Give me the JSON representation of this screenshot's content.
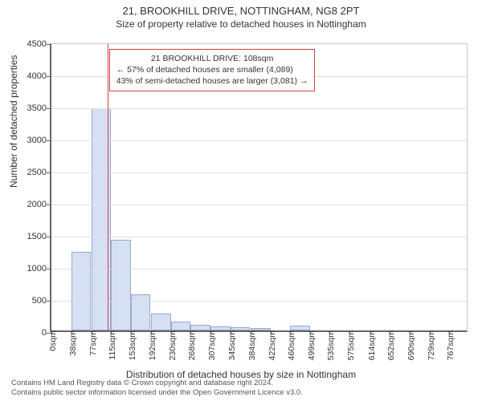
{
  "title": "21, BROOKHILL DRIVE, NOTTINGHAM, NG8 2PT",
  "subtitle": "Size of property relative to detached houses in Nottingham",
  "chart": {
    "type": "histogram",
    "xlabel": "Distribution of detached houses by size in Nottingham",
    "ylabel": "Number of detached properties",
    "background_color": "#ffffff",
    "grid_color": "#e0e0e0",
    "axis_color": "#666666",
    "bar_fill": "#d6e0f5",
    "bar_stroke": "#9aa7c7",
    "marker_color": "#d04040",
    "marker_x": 108,
    "title_fontsize": 13,
    "subtitle_fontsize": 12,
    "label_fontsize": 12,
    "tick_fontsize": 11,
    "ylim": [
      0,
      4500
    ],
    "ytick_step": 500,
    "yticks": [
      0,
      500,
      1000,
      1500,
      2000,
      2500,
      3000,
      3500,
      4000,
      4500
    ],
    "xlim": [
      0,
      805
    ],
    "xticks": [
      {
        "pos": 0,
        "label": "0sqm"
      },
      {
        "pos": 38,
        "label": "38sqm"
      },
      {
        "pos": 77,
        "label": "77sqm"
      },
      {
        "pos": 115,
        "label": "115sqm"
      },
      {
        "pos": 153,
        "label": "153sqm"
      },
      {
        "pos": 192,
        "label": "192sqm"
      },
      {
        "pos": 230,
        "label": "230sqm"
      },
      {
        "pos": 268,
        "label": "268sqm"
      },
      {
        "pos": 307,
        "label": "307sqm"
      },
      {
        "pos": 345,
        "label": "345sqm"
      },
      {
        "pos": 384,
        "label": "384sqm"
      },
      {
        "pos": 422,
        "label": "422sqm"
      },
      {
        "pos": 460,
        "label": "460sqm"
      },
      {
        "pos": 499,
        "label": "499sqm"
      },
      {
        "pos": 535,
        "label": "535sqm"
      },
      {
        "pos": 575,
        "label": "575sqm"
      },
      {
        "pos": 614,
        "label": "614sqm"
      },
      {
        "pos": 652,
        "label": "652sqm"
      },
      {
        "pos": 690,
        "label": "690sqm"
      },
      {
        "pos": 729,
        "label": "729sqm"
      },
      {
        "pos": 767,
        "label": "767sqm"
      }
    ],
    "bar_width_x": 38,
    "bars": [
      {
        "x": 0,
        "y": 0
      },
      {
        "x": 38,
        "y": 1230
      },
      {
        "x": 77,
        "y": 3460
      },
      {
        "x": 115,
        "y": 1410
      },
      {
        "x": 153,
        "y": 560
      },
      {
        "x": 192,
        "y": 260
      },
      {
        "x": 230,
        "y": 135
      },
      {
        "x": 268,
        "y": 85
      },
      {
        "x": 307,
        "y": 65
      },
      {
        "x": 345,
        "y": 55
      },
      {
        "x": 384,
        "y": 35
      },
      {
        "x": 422,
        "y": 0
      },
      {
        "x": 460,
        "y": 75
      },
      {
        "x": 499,
        "y": 0
      },
      {
        "x": 535,
        "y": 0
      },
      {
        "x": 575,
        "y": 0
      },
      {
        "x": 614,
        "y": 0
      },
      {
        "x": 652,
        "y": 0
      },
      {
        "x": 690,
        "y": 0
      },
      {
        "x": 729,
        "y": 0
      },
      {
        "x": 767,
        "y": 0
      }
    ]
  },
  "annotation": {
    "border_color": "#d04040",
    "lines": [
      "21 BROOKHILL DRIVE: 108sqm",
      "← 57% of detached houses are smaller (4,089)",
      "43% of semi-detached houses are larger (3,081) →"
    ]
  },
  "credits": {
    "line1": "Contains HM Land Registry data © Crown copyright and database right 2024.",
    "line2": "Contains public sector information licensed under the Open Government Licence v3.0."
  }
}
